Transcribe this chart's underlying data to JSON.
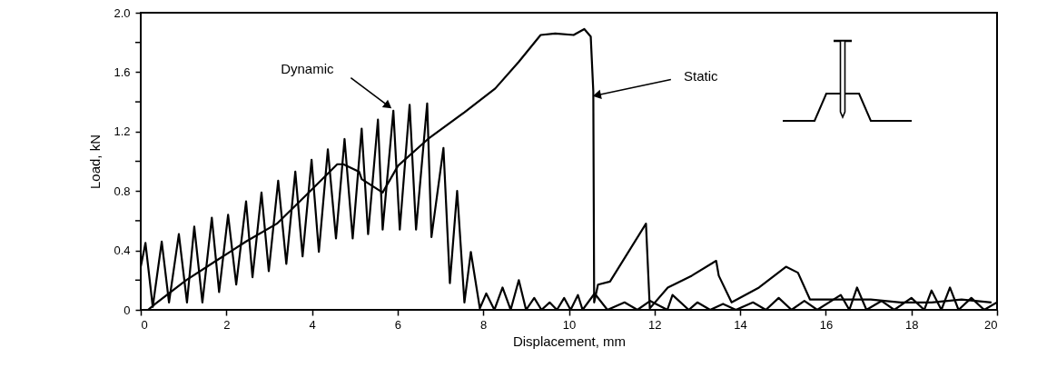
{
  "chart_data": {
    "type": "line",
    "xlabel": "Displacement, mm",
    "ylabel": "Load, kN",
    "xlim": [
      0,
      20
    ],
    "ylim": [
      0,
      2
    ],
    "xticks": [
      0,
      2,
      4,
      6,
      8,
      10,
      12,
      14,
      16,
      18,
      20
    ],
    "yticks": [
      0,
      {
        "value": 0.2,
        "label": null
      },
      0.4,
      {
        "value": 0.6,
        "label": null
      },
      0.8,
      {
        "value": 1.0,
        "label": null
      },
      1.2,
      {
        "value": 1.4,
        "label": null
      },
      1.6,
      {
        "value": 1.8,
        "label": null
      },
      {
        "value": 2.0,
        "label": "2.0"
      }
    ],
    "grid": false,
    "line_style": "solid",
    "marker": "none",
    "series": [
      {
        "color": "#000000",
        "x": [
          0,
          0.11,
          0.28,
          0.49,
          0.66,
          0.89,
          1.08,
          1.25,
          1.44,
          1.66,
          1.83,
          2.04,
          2.23,
          2.46,
          2.61,
          2.82,
          2.99,
          3.21,
          3.4,
          3.61,
          3.78,
          3.99,
          4.16,
          4.37,
          4.56,
          4.76,
          4.95,
          5.16,
          5.31,
          5.54,
          5.65,
          5.9,
          6.05,
          6.28,
          6.43,
          6.69,
          6.79,
          7.07,
          7.22,
          7.39,
          7.56,
          7.71,
          7.92,
          8.07,
          8.26,
          8.45,
          8.64,
          8.83,
          9.0,
          9.19,
          9.36,
          9.55,
          9.72,
          9.89,
          10.04,
          10.21,
          10.32,
          10.6,
          10.9,
          11.3,
          11.6,
          11.9,
          12.3,
          12.42,
          12.8,
          13.0,
          13.3,
          13.6,
          13.9,
          14.3,
          14.6,
          14.9,
          15.2,
          15.5,
          15.8,
          16.35,
          16.55,
          16.73,
          16.95,
          17.3,
          17.6,
          18.0,
          18.3,
          18.47,
          18.7,
          18.9,
          19.1,
          19.4,
          19.7,
          20
        ],
        "values": [
          0.29,
          0.45,
          0.02,
          0.46,
          0.05,
          0.51,
          0.05,
          0.56,
          0.05,
          0.62,
          0.12,
          0.64,
          0.17,
          0.73,
          0.22,
          0.79,
          0.26,
          0.87,
          0.31,
          0.93,
          0.36,
          1.01,
          0.39,
          1.08,
          0.48,
          1.15,
          0.48,
          1.22,
          0.51,
          1.28,
          0.54,
          1.34,
          0.54,
          1.38,
          0.54,
          1.39,
          0.49,
          1.09,
          0.18,
          0.8,
          0.05,
          0.39,
          0.01,
          0.11,
          0,
          0.15,
          0,
          0.2,
          0,
          0.08,
          0,
          0.05,
          0,
          0.08,
          0,
          0.1,
          0,
          0.11,
          0,
          0.05,
          0,
          0.06,
          0,
          0.1,
          0,
          0.05,
          0,
          0.04,
          0,
          0.05,
          0,
          0.08,
          0,
          0.06,
          0,
          0.1,
          0,
          0.15,
          0,
          0.06,
          0,
          0.08,
          0,
          0.13,
          0,
          0.15,
          0,
          0.08,
          0,
          0.05
        ]
      },
      {
        "color": "#000000",
        "x": [
          0.17,
          0.34,
          1.06,
          1.76,
          2.46,
          3.18,
          3.89,
          4.59,
          4.73,
          5.1,
          5.16,
          5.65,
          6.01,
          6.71,
          7.56,
          8.28,
          8.83,
          9.34,
          9.68,
          10.11,
          10.36,
          10.51,
          10.57,
          10.59,
          10.68,
          10.96,
          11.8,
          11.89,
          12.31,
          12.87,
          13.44,
          13.5,
          13.8,
          14.44,
          15.07,
          15.35,
          15.63,
          15.99,
          17.05,
          17.75,
          18.47,
          19.17,
          19.87
        ],
        "values": [
          0,
          0.04,
          0.2,
          0.33,
          0.46,
          0.58,
          0.78,
          0.98,
          0.98,
          0.93,
          0.88,
          0.79,
          0.97,
          1.15,
          1.33,
          1.49,
          1.67,
          1.85,
          1.86,
          1.85,
          1.89,
          1.84,
          1.47,
          0.05,
          0.17,
          0.19,
          0.58,
          0.01,
          0.15,
          0.23,
          0.33,
          0.23,
          0.05,
          0.15,
          0.29,
          0.25,
          0.07,
          0.07,
          0.07,
          0.05,
          0.05,
          0.07,
          0.05
        ]
      }
    ],
    "annotations": [
      {
        "text": "Dynamic",
        "x": 5.84,
        "y": 1.36
      },
      {
        "text": "Static",
        "x": 10.58,
        "y": 1.44
      }
    ]
  }
}
